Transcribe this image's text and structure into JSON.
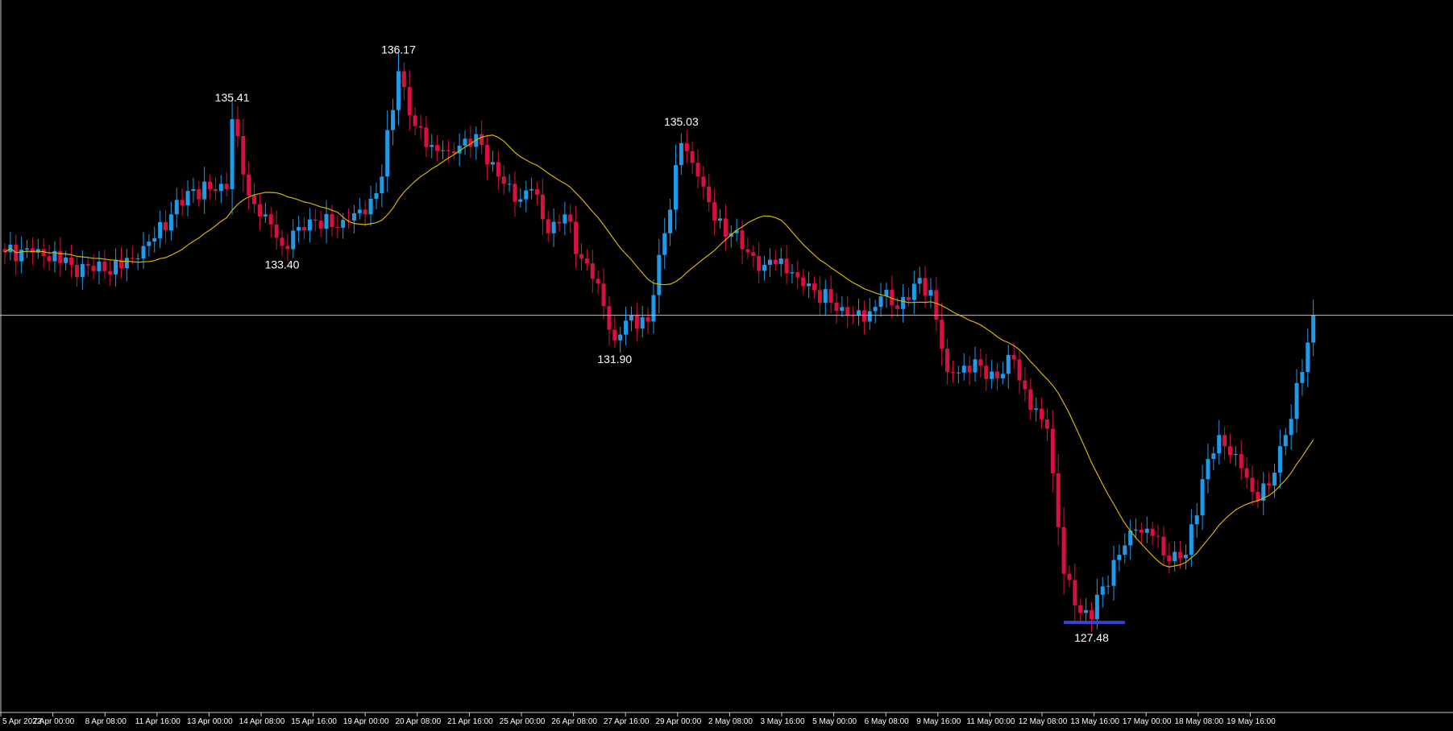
{
  "colors": {
    "background": "#000000",
    "bull": "#1f9bea",
    "bear": "#d8103f",
    "ma": "#d6b300",
    "axis": "#c8c8c8",
    "price_line": "#b8c2cc",
    "support_marker": "#3445d6",
    "label": "#ffffff"
  },
  "chart_data": {
    "type": "candlestick",
    "ylim": [
      126.0,
      137.3
    ],
    "current_price": 132.3,
    "support_level": 127.48,
    "x_ticks": [
      "5 Apr 2022",
      "7 Apr 00:00",
      "8 Apr 08:00",
      "11 Apr 16:00",
      "13 Apr 00:00",
      "14 Apr 08:00",
      "15 Apr 16:00",
      "19 Apr 00:00",
      "20 Apr 08:00",
      "21 Apr 16:00",
      "25 Apr 00:00",
      "26 Apr 08:00",
      "27 Apr 16:00",
      "29 Apr 00:00",
      "2 May 08:00",
      "3 May 16:00",
      "5 May 00:00",
      "6 May 08:00",
      "9 May 16:00",
      "11 May 00:00",
      "12 May 08:00",
      "13 May 16:00",
      "17 May 00:00",
      "18 May 08:00",
      "19 May 16:00"
    ],
    "annotations": [
      {
        "text": "135.41",
        "candle": 41,
        "where": "above"
      },
      {
        "text": "133.40",
        "candle": 50,
        "where": "below"
      },
      {
        "text": "136.17",
        "candle": 71,
        "where": "above"
      },
      {
        "text": "135.03",
        "candle": 122,
        "where": "above"
      },
      {
        "text": "131.90",
        "candle": 110,
        "where": "below"
      },
      {
        "text": "127.48",
        "candle": 196,
        "where": "below"
      }
    ],
    "key_points": [
      [
        0,
        133.3
      ],
      [
        6,
        133.35
      ],
      [
        12,
        133.1
      ],
      [
        18,
        133.0
      ],
      [
        24,
        133.2
      ],
      [
        30,
        133.9
      ],
      [
        34,
        134.3
      ],
      [
        37,
        134.3
      ],
      [
        40,
        134.3
      ],
      [
        41,
        135.41
      ],
      [
        44,
        134.2
      ],
      [
        47,
        133.9
      ],
      [
        50,
        133.4
      ],
      [
        53,
        133.7
      ],
      [
        56,
        133.8
      ],
      [
        59,
        133.7
      ],
      [
        62,
        133.8
      ],
      [
        65,
        133.9
      ],
      [
        68,
        134.5
      ],
      [
        71,
        136.17
      ],
      [
        74,
        135.3
      ],
      [
        77,
        135.0
      ],
      [
        80,
        134.9
      ],
      [
        83,
        135.1
      ],
      [
        86,
        135.0
      ],
      [
        89,
        134.5
      ],
      [
        92,
        134.1
      ],
      [
        95,
        134.3
      ],
      [
        98,
        133.6
      ],
      [
        101,
        133.9
      ],
      [
        104,
        133.2
      ],
      [
        107,
        132.8
      ],
      [
        110,
        131.9
      ],
      [
        113,
        132.3
      ],
      [
        116,
        132.2
      ],
      [
        119,
        133.6
      ],
      [
        122,
        135.03
      ],
      [
        125,
        134.5
      ],
      [
        128,
        133.8
      ],
      [
        131,
        133.6
      ],
      [
        134,
        133.3
      ],
      [
        137,
        133.1
      ],
      [
        140,
        133.2
      ],
      [
        143,
        132.9
      ],
      [
        146,
        132.7
      ],
      [
        149,
        132.5
      ],
      [
        152,
        132.3
      ],
      [
        155,
        132.2
      ],
      [
        158,
        132.6
      ],
      [
        161,
        132.4
      ],
      [
        164,
        132.8
      ],
      [
        167,
        132.7
      ],
      [
        170,
        131.4
      ],
      [
        173,
        131.5
      ],
      [
        176,
        131.5
      ],
      [
        179,
        131.3
      ],
      [
        182,
        131.6
      ],
      [
        185,
        130.8
      ],
      [
        188,
        130.5
      ],
      [
        191,
        128.2
      ],
      [
        193,
        127.7
      ],
      [
        196,
        127.48
      ],
      [
        198,
        128.0
      ],
      [
        201,
        128.5
      ],
      [
        204,
        128.9
      ],
      [
        207,
        128.8
      ],
      [
        210,
        128.4
      ],
      [
        213,
        128.5
      ],
      [
        216,
        129.7
      ],
      [
        219,
        130.4
      ],
      [
        222,
        130.1
      ],
      [
        225,
        129.5
      ],
      [
        228,
        129.6
      ],
      [
        231,
        130.4
      ],
      [
        234,
        131.4
      ],
      [
        236,
        132.3
      ]
    ]
  }
}
